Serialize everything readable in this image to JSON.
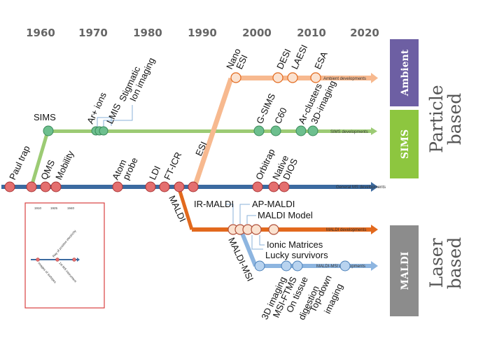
{
  "years": [
    "1960",
    "1970",
    "1980",
    "1990",
    "2000",
    "2010",
    "2020"
  ],
  "lines": {
    "ambient": "Ambient developments",
    "sims": "SIMS developments",
    "general": "General MS developments",
    "maldi": "MALDI developments",
    "maldi_msi": "MALDI-MSI developments"
  },
  "categories": {
    "ambient": "Ambient",
    "sims": "SIMS",
    "maldi": "MALDI"
  },
  "side_titles": {
    "particle_1": "Particle",
    "particle_2": "based",
    "laser_1": "Laser",
    "laser_2": "based"
  },
  "labels": {
    "paul_trap": "Paul trap",
    "qms": "QMS",
    "mobility": "Mobility",
    "sims": "SIMS",
    "ar_ions": "Ar+ ions",
    "lmis": "LMIS",
    "stigmatic": "Stigmatic",
    "ion_imaging": "Ion imaging",
    "atom": "Atom",
    "probe": "probe",
    "ldi": "LDI",
    "ft_icr": "FT-ICR",
    "esi": "ESI",
    "maldi": "MALDI",
    "nano": "Nano",
    "nano_esi": "ESI",
    "desi": "DESI",
    "laesi": "LAESI",
    "esa": "ESA",
    "g_sims": "G-SIMS",
    "c60": "C60",
    "ar_clusters": "Ar-clusters",
    "imaging_3d": "3D-imaging",
    "orbitrap": "Orbitrap",
    "native": "Native",
    "dios": "DIOS",
    "ir_maldi": "IR-MALDI",
    "ap_maldi": "AP-MALDI",
    "maldi_model": "MALDI Model",
    "ionic_matrices": "Ionic Matrices",
    "lucky_survivors": "Lucky survivors",
    "maldi_msi": "MALDI-MSI",
    "msi_3d": "3D imaging",
    "msi_ftms": "MSI-FTMS",
    "on_tissue": "On tissue",
    "digestion": "digestion",
    "top_down": "Top-down",
    "top_down_2": "imaging"
  },
  "inset": {
    "years": [
      "1910",
      "1925",
      "1940"
    ],
    "label_1": "Ray of positive electricity",
    "label_2": "Images of isotopes",
    "label_3": "1st MS instrument"
  },
  "colors": {
    "general": "#3b6aa0",
    "sims": "#9ccb74",
    "ambient": "#f7b98f",
    "maldi": "#e2691d",
    "maldi_msi": "#8db5e0",
    "node_red": "#e46f6f",
    "node_green": "#6dbf8e",
    "node_peach": "#fbe2d0",
    "cat_ambient": "#6d5fa3",
    "cat_sims": "#8dc63f",
    "cat_maldi": "#8c8c8c",
    "inset_border": "#d94040"
  }
}
